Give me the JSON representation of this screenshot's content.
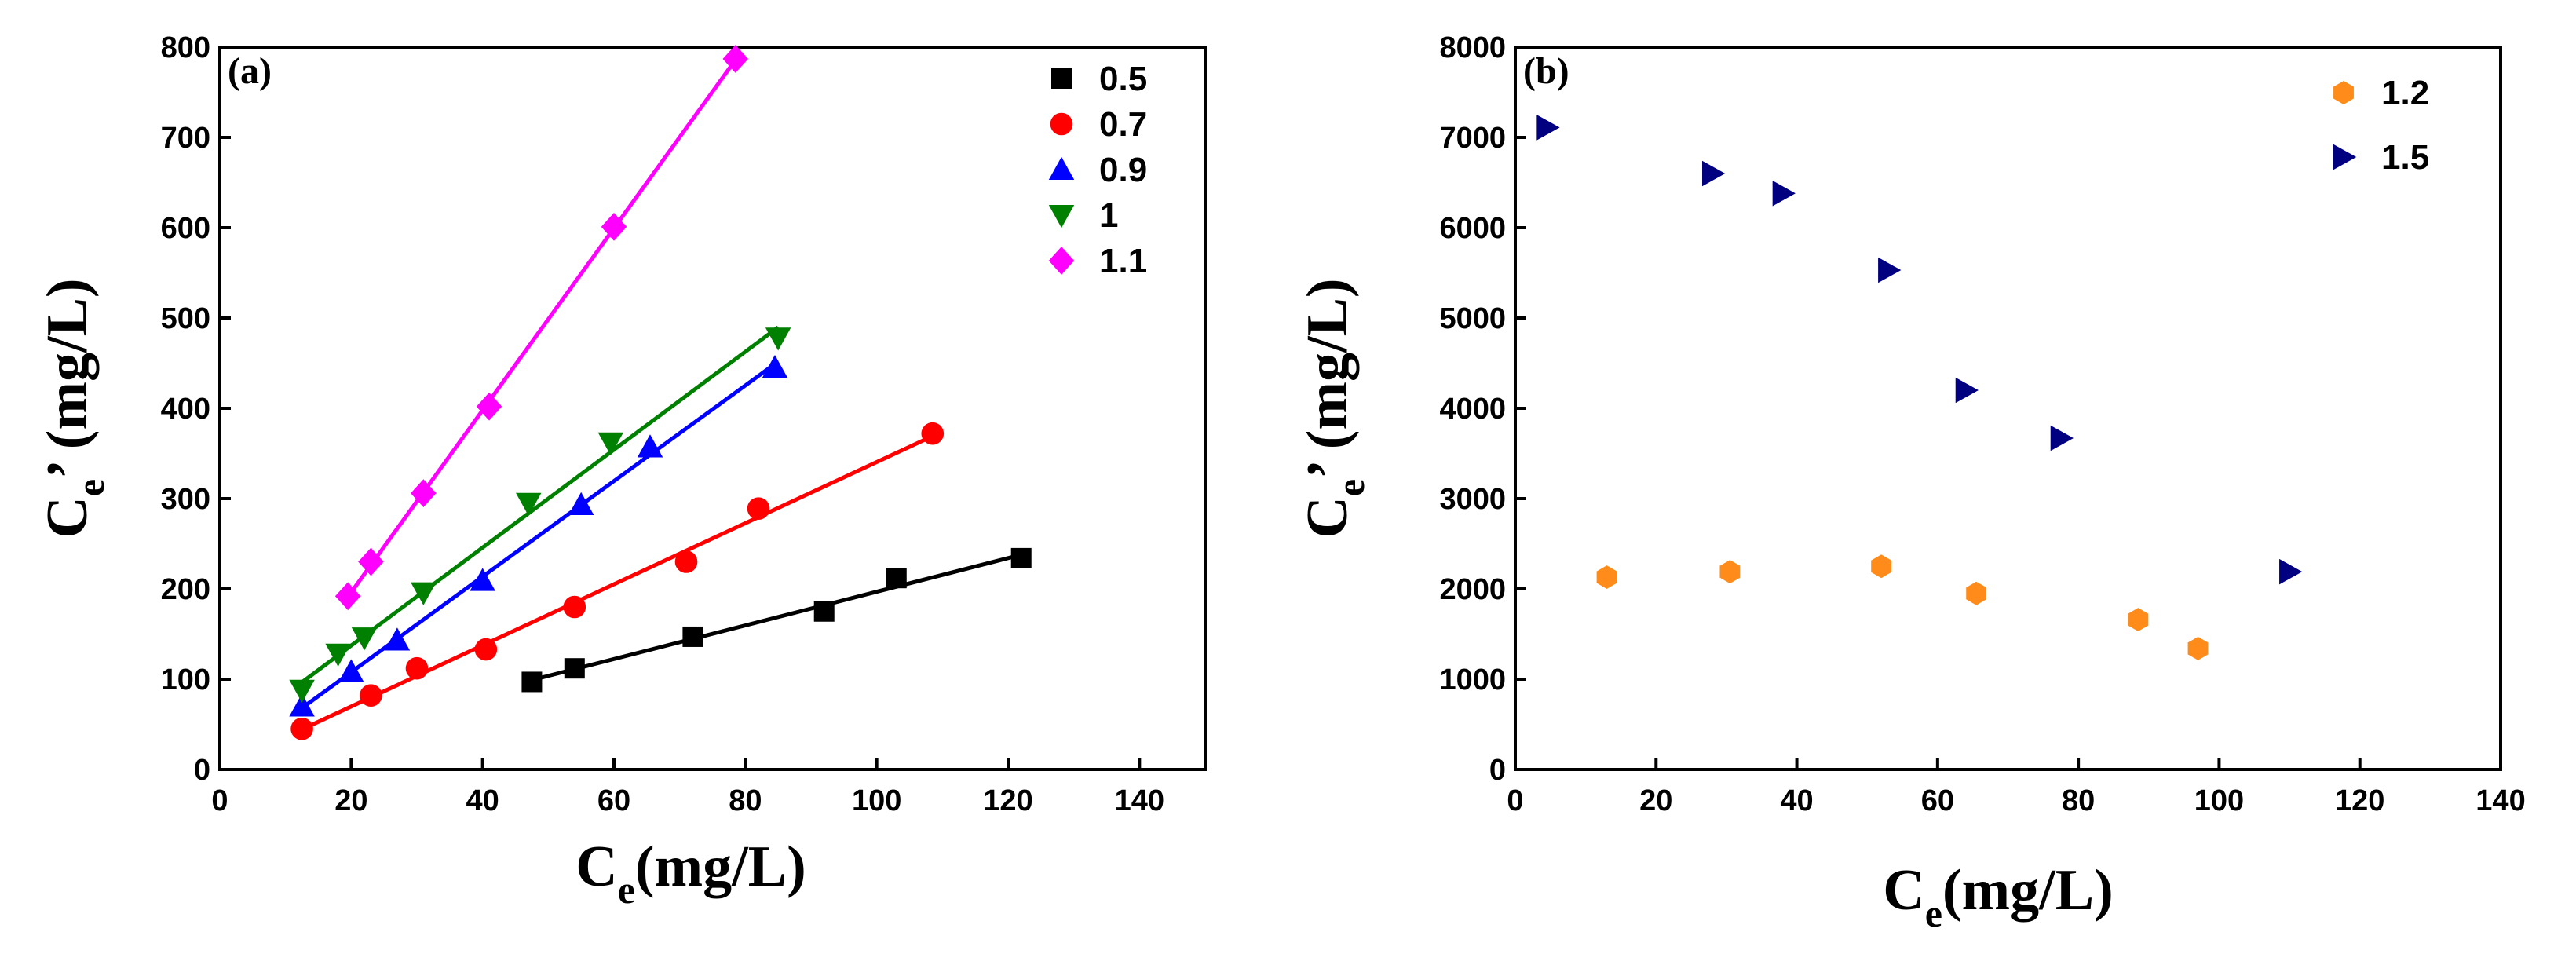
{
  "chart_data": [
    {
      "type": "scatter",
      "panel_label": "(a)",
      "xlabel": "C",
      "xlabel_sub": "e",
      "xlabel_unit": "(mg/L)",
      "ylabel": "C",
      "ylabel_sub": "e",
      "ylabel_rest": "’ (mg/L)",
      "xlim": [
        0,
        150
      ],
      "ylim": [
        0,
        800
      ],
      "xticks": [
        0,
        20,
        40,
        60,
        80,
        100,
        120,
        140
      ],
      "yticks": [
        0,
        100,
        200,
        300,
        400,
        500,
        600,
        700,
        800
      ],
      "legend_position": "top-right",
      "fit_lines": true,
      "series": [
        {
          "name": "0.5",
          "color": "#000000",
          "marker": "square",
          "x": [
            47.5,
            54,
            72,
            92,
            103,
            122
          ],
          "y": [
            97,
            112,
            147,
            175,
            212,
            234
          ]
        },
        {
          "name": "0.7",
          "color": "#ff0000",
          "marker": "circle",
          "x": [
            12.5,
            23,
            30,
            40.5,
            54,
            71,
            82,
            108.5
          ],
          "y": [
            45,
            82,
            112,
            133,
            180,
            230,
            289,
            372
          ]
        },
        {
          "name": "0.9",
          "color": "#0000ff",
          "marker": "triangle-up",
          "x": [
            12.5,
            20,
            27,
            40,
            55,
            65.5,
            84.5
          ],
          "y": [
            70,
            108,
            143,
            209,
            293,
            357,
            445
          ]
        },
        {
          "name": "1",
          "color": "#008000",
          "marker": "triangle-down",
          "x": [
            12.5,
            18,
            22,
            31,
            47,
            59.5,
            85
          ],
          "y": [
            88,
            128,
            146,
            196,
            295,
            362,
            478
          ]
        },
        {
          "name": "1.1",
          "color": "#ff00ff",
          "marker": "diamond",
          "x": [
            19.5,
            23,
            31,
            41,
            60,
            78.5
          ],
          "y": [
            192,
            230,
            306,
            402,
            601,
            787
          ]
        }
      ]
    },
    {
      "type": "scatter",
      "panel_label": "(b)",
      "xlabel": "C",
      "xlabel_sub": "e",
      "xlabel_unit": "(mg/L)",
      "ylabel": "C",
      "ylabel_sub": "e",
      "ylabel_rest": "’ (mg/L)",
      "xlim": [
        0,
        140
      ],
      "ylim": [
        0,
        8000
      ],
      "xticks": [
        0,
        20,
        40,
        60,
        80,
        100,
        120,
        140
      ],
      "yticks": [
        0,
        1000,
        2000,
        3000,
        4000,
        5000,
        6000,
        7000,
        8000
      ],
      "legend_position": "top-right",
      "fit_lines": false,
      "series": [
        {
          "name": "1.2",
          "color": "#ff8c1a",
          "marker": "hexagon",
          "x": [
            13,
            30.5,
            52,
            65.5,
            88.5,
            97
          ],
          "y": [
            2130,
            2190,
            2250,
            1950,
            1660,
            1340
          ]
        },
        {
          "name": "1.5",
          "color": "#000080",
          "marker": "triangle-right",
          "x": [
            4.5,
            28,
            38,
            53,
            64,
            77.5,
            110
          ],
          "y": [
            7110,
            6600,
            6380,
            5530,
            4200,
            3670,
            2190
          ]
        }
      ]
    }
  ]
}
